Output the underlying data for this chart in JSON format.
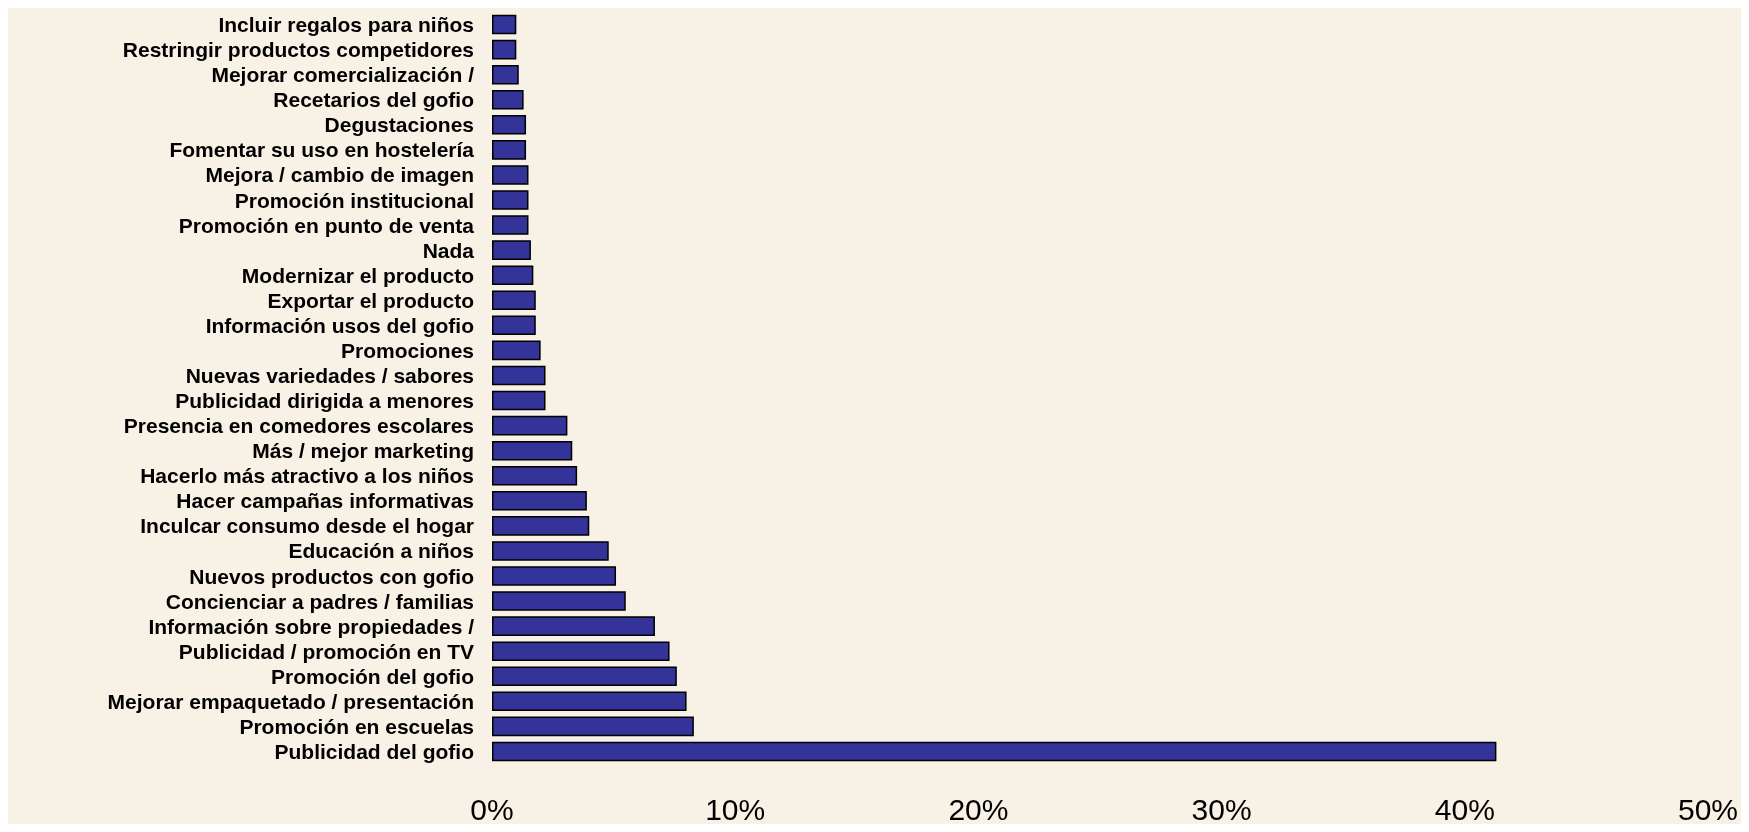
{
  "chart_data": {
    "type": "bar",
    "orientation": "horizontal",
    "color": "#333399",
    "categories": [
      "Incluir regalos para niños",
      "Restringir productos competidores",
      "Mejorar comercialización /",
      "Recetarios del gofio",
      "Degustaciones",
      "Fomentar su uso en hostelería",
      "Mejora / cambio de imagen",
      "Promoción institucional",
      "Promoción en punto de venta",
      "Nada",
      "Modernizar el producto",
      "Exportar el producto",
      "Información usos del gofio",
      "Promociones",
      "Nuevas variedades / sabores",
      "Publicidad dirigida a menores",
      "Presencia en comedores escolares",
      "Más / mejor marketing",
      "Hacerlo más atractivo a los niños",
      "Hacer campañas informativas",
      "Inculcar consumo desde el hogar",
      "Educación a niños",
      "Nuevos productos con gofio",
      "Concienciar a padres / familias",
      "Información sobre propiedades /",
      "Publicidad / promoción en TV",
      "Promoción del gofio",
      "Mejorar empaquetado / presentación",
      "Promoción en escuelas",
      "Publicidad del gofio"
    ],
    "values": [
      1.0,
      1.0,
      1.1,
      1.3,
      1.4,
      1.4,
      1.5,
      1.5,
      1.5,
      1.6,
      1.7,
      1.8,
      1.8,
      2.0,
      2.2,
      2.2,
      3.1,
      3.3,
      3.5,
      3.9,
      4.0,
      4.8,
      5.1,
      5.5,
      6.7,
      7.3,
      7.6,
      8.0,
      8.3,
      41.3
    ],
    "xlim": [
      0,
      50
    ],
    "xticks": [
      {
        "value": 0,
        "label": "0%"
      },
      {
        "value": 10,
        "label": "10%"
      },
      {
        "value": 20,
        "label": "20%"
      },
      {
        "value": 30,
        "label": "30%"
      },
      {
        "value": 40,
        "label": "40%"
      },
      {
        "value": 50,
        "label": "50%"
      }
    ],
    "data_labels": false
  }
}
